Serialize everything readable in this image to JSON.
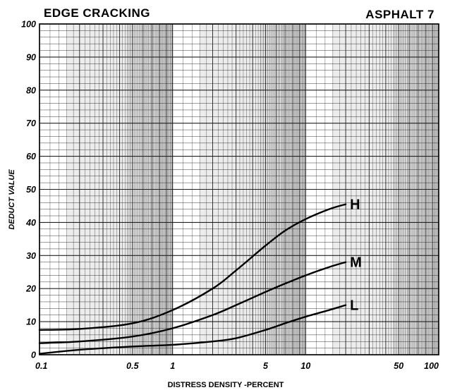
{
  "chart_data": {
    "type": "line",
    "title": "EDGE CRACKING",
    "subtitle": "ASPHALT 7",
    "xlabel": "DISTRESS DENSITY -PERCENT",
    "ylabel": "DEDUCT VALUE",
    "x_scale": "log",
    "xlim": [
      0.1,
      100
    ],
    "ylim": [
      0,
      100
    ],
    "grid": true,
    "x_ticks": [
      0.1,
      0.5,
      1,
      5,
      10,
      50,
      100
    ],
    "x_tick_labels": [
      "0.1",
      "0.5",
      "1",
      "5",
      "10",
      "50",
      "100"
    ],
    "y_ticks": [
      0,
      10,
      20,
      30,
      40,
      50,
      60,
      70,
      80,
      90,
      100
    ],
    "y_tick_labels": [
      "0",
      "10",
      "20",
      "30",
      "40",
      "50",
      "60",
      "70",
      "80",
      "90",
      "100"
    ],
    "series": [
      {
        "name": "H",
        "x": [
          0.1,
          0.2,
          0.5,
          1,
          2,
          3,
          5,
          7,
          10,
          15,
          20
        ],
        "y": [
          7.5,
          7.8,
          9.5,
          13.5,
          20,
          25.5,
          33,
          37.5,
          41,
          44,
          45.5
        ]
      },
      {
        "name": "M",
        "x": [
          0.1,
          0.2,
          0.5,
          1,
          2,
          3,
          5,
          7,
          10,
          15,
          20
        ],
        "y": [
          3.5,
          4,
          5.5,
          8,
          12,
          15,
          19,
          21.5,
          24,
          26.5,
          28
        ]
      },
      {
        "name": "L",
        "x": [
          0.1,
          0.2,
          0.5,
          1,
          2,
          3,
          5,
          7,
          10,
          15,
          20
        ],
        "y": [
          0.3,
          1.5,
          2.5,
          3,
          4,
          5,
          7.5,
          9.5,
          11.5,
          13.5,
          15
        ]
      }
    ]
  }
}
